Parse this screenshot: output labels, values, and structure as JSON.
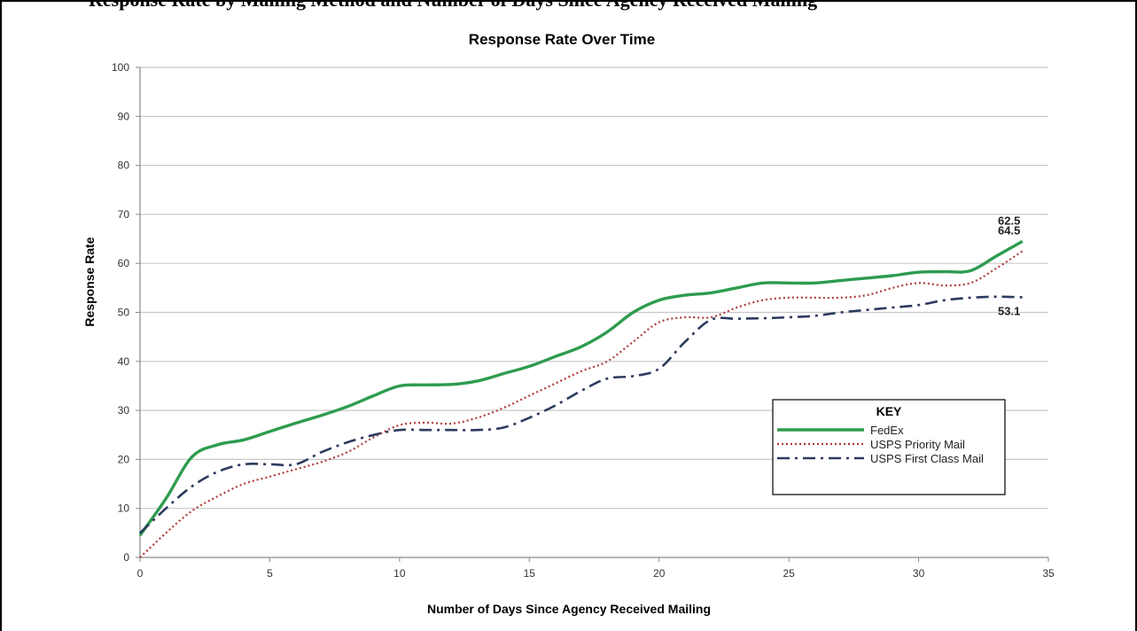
{
  "page_heading": "Response Rate by Mailing Method and Number of Days Since Agency Received Mailing",
  "chart_data": {
    "type": "line",
    "title": "Response Rate Over Time",
    "xlabel": "Number of Days Since Agency Received Mailing",
    "ylabel": "Response Rate",
    "xlim": [
      0,
      35
    ],
    "ylim": [
      0,
      100
    ],
    "xticks": [
      0,
      5,
      10,
      15,
      20,
      25,
      30,
      35
    ],
    "yticks": [
      0,
      10,
      20,
      30,
      40,
      50,
      60,
      70,
      80,
      90,
      100
    ],
    "grid": "horizontal",
    "legend_position": "lower-right",
    "legend_title": "KEY",
    "series": [
      {
        "name": "FedEx",
        "style": "solid",
        "color": "#2e9c4f",
        "x": [
          0,
          1,
          2,
          3,
          4,
          5,
          6,
          7,
          8,
          9,
          10,
          11,
          12,
          13,
          14,
          15,
          16,
          17,
          18,
          19,
          20,
          21,
          22,
          23,
          24,
          25,
          26,
          27,
          28,
          29,
          30,
          31,
          32,
          33,
          34
        ],
        "y": [
          4.5,
          12,
          20.5,
          23,
          24,
          25.7,
          27.4,
          29,
          30.8,
          33,
          35,
          35.2,
          35.3,
          36,
          37.5,
          39,
          41,
          43,
          46,
          50,
          52.5,
          53.5,
          54,
          55,
          56,
          56,
          56,
          56.5,
          57,
          57.5,
          58.2,
          58.3,
          58.5,
          61.5,
          64.5
        ],
        "end_label": "64.5"
      },
      {
        "name": "USPS Priority Mail",
        "style": "dotted",
        "color": "#b03a3a",
        "x": [
          0,
          1,
          2,
          3,
          4,
          5,
          6,
          7,
          8,
          9,
          10,
          11,
          12,
          13,
          14,
          15,
          16,
          17,
          18,
          19,
          20,
          21,
          22,
          23,
          24,
          25,
          26,
          27,
          28,
          29,
          30,
          31,
          32,
          33,
          34
        ],
        "y": [
          0,
          5,
          9.5,
          12.5,
          15,
          16.5,
          18,
          19.5,
          21.5,
          24.5,
          27,
          27.5,
          27.3,
          28.5,
          30.5,
          33,
          35.5,
          38,
          40,
          44,
          48,
          49,
          49,
          51,
          52.5,
          53,
          53,
          53,
          53.5,
          55,
          56,
          55.5,
          56,
          59,
          62.5
        ],
        "end_label": "62.5"
      },
      {
        "name": "USPS First Class Mail",
        "style": "dash-dot",
        "color": "#2b3a5e",
        "x": [
          0,
          1,
          2,
          3,
          4,
          5,
          6,
          7,
          8,
          9,
          10,
          11,
          12,
          13,
          14,
          15,
          16,
          17,
          18,
          19,
          20,
          21,
          22,
          23,
          24,
          25,
          26,
          27,
          28,
          29,
          30,
          31,
          32,
          33,
          34
        ],
        "y": [
          5,
          10,
          14.5,
          17.5,
          19,
          19,
          19,
          21.5,
          23.5,
          25,
          26,
          26,
          26,
          26,
          26.5,
          28.5,
          31,
          34,
          36.5,
          37,
          38.5,
          44,
          48.5,
          48.7,
          48.8,
          49,
          49.3,
          50,
          50.5,
          51,
          51.5,
          52.5,
          53,
          53.2,
          53.1
        ],
        "end_label": "53.1"
      }
    ]
  }
}
